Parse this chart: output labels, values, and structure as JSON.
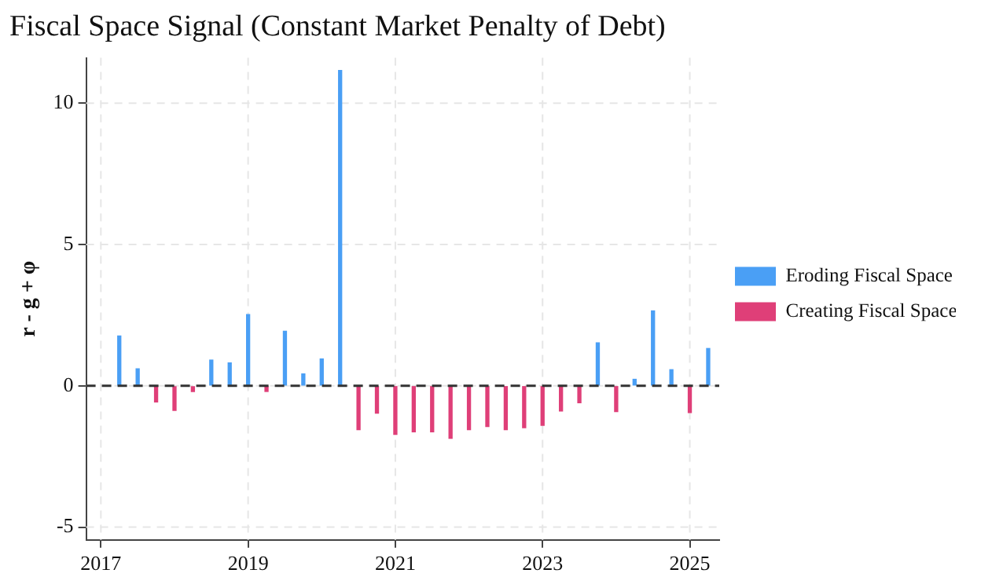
{
  "chart_data": {
    "type": "bar",
    "title": "Fiscal Space Signal (Constant Market Penalty of Debt)",
    "ylabel": "r - g + φ",
    "x": [
      2017.25,
      2017.5,
      2017.75,
      2018,
      2018.25,
      2018.5,
      2018.75,
      2019,
      2019.25,
      2019.5,
      2019.75,
      2020,
      2020.25,
      2020.5,
      2020.75,
      2021,
      2021.25,
      2021.5,
      2021.75,
      2022,
      2022.25,
      2022.5,
      2022.75,
      2023,
      2023.25,
      2023.5,
      2023.75,
      2024,
      2024.25,
      2024.5,
      2024.75,
      2025,
      2025.25
    ],
    "series": [
      {
        "name": "Eroding Fiscal Space",
        "color": "#4a9ff5",
        "values": [
          1.76,
          0.6,
          null,
          null,
          null,
          0.91,
          0.81,
          2.52,
          null,
          1.93,
          0.42,
          0.95,
          11.15,
          null,
          null,
          null,
          null,
          null,
          null,
          null,
          null,
          null,
          null,
          null,
          null,
          null,
          1.52,
          null,
          0.23,
          2.65,
          0.57,
          null,
          1.32
        ]
      },
      {
        "name": "Creating Fiscal Space",
        "color": "#df3f78",
        "values": [
          null,
          null,
          -0.57,
          -0.87,
          -0.2,
          null,
          null,
          null,
          -0.2,
          null,
          null,
          null,
          null,
          -1.55,
          -0.97,
          -1.72,
          -1.63,
          -1.63,
          -1.86,
          -1.55,
          -1.44,
          -1.55,
          -1.48,
          -1.4,
          -0.89,
          -0.6,
          null,
          -0.91,
          null,
          null,
          null,
          -0.95,
          null
        ]
      }
    ],
    "xlim": [
      2016.8,
      2025.4
    ],
    "xticks": [
      2017,
      2019,
      2021,
      2023,
      2025
    ],
    "ylim": [
      -5.45,
      11.6
    ],
    "yticks": [
      -5,
      0,
      5,
      10
    ],
    "ref_lines": [
      {
        "axis": "y",
        "value": 0,
        "color": "#333333",
        "line_style": "dashed"
      }
    ],
    "grid": true,
    "legend": "right"
  }
}
